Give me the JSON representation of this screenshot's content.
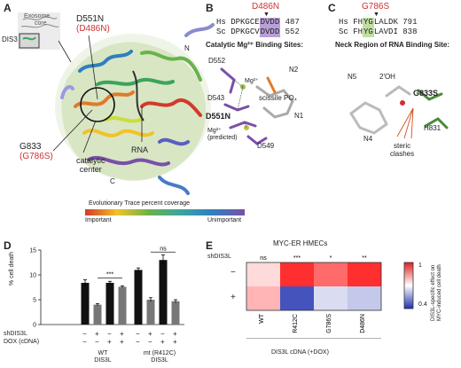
{
  "panel_labels": {
    "a": "A",
    "b": "B",
    "c": "C",
    "d": "D",
    "e": "E"
  },
  "panel_a": {
    "thumb_line1": "Exosome",
    "thumb_line2": "core",
    "thumb_label": "DIS3",
    "mut1_a": "D551N",
    "mut1_b": "(D486N)",
    "mut2_a": "G833",
    "mut2_b": "(G786S)",
    "catalytic": "catalytic",
    "center": "center",
    "rna": "RNA",
    "n_term": "N",
    "c_term": "C",
    "scale_title": "Evolutionary Trace percent coverage",
    "scale_left": "Important",
    "scale_right": "Unimportant"
  },
  "panel_b": {
    "mut_header": "D486N",
    "seq_hs_label": "Hs",
    "seq_hs_pre": "DPKGCE",
    "seq_hs_box": "DVDD",
    "seq_hs_num": "487",
    "seq_sc_label": "Sc",
    "seq_sc_pre": "DPKGCV",
    "seq_sc_box": "DVDD",
    "seq_sc_num": "552",
    "title": "Catalytic Mg²⁺ Binding Sites:",
    "d552": "D552",
    "mg": "Mg²⁺",
    "n2": "N2",
    "d543": "D543",
    "scissile": "scissile PO₄",
    "d551n": "D551N",
    "n1": "N1",
    "mg_pred_a": "Mg²⁺",
    "mg_pred_b": "(predicted)",
    "d549": "D549"
  },
  "panel_c": {
    "mut_header": "G786S",
    "seq_hs_label": "Hs",
    "seq_hs_pre": "FH",
    "seq_hs_box": "YG",
    "seq_hs_post": "LALDK",
    "seq_hs_num": "791",
    "seq_sc_label": "Sc",
    "seq_sc_pre": "FH",
    "seq_sc_box": "YG",
    "seq_sc_post": "LAVDI",
    "seq_sc_num": "838",
    "title": "Neck Region of RNA Binding Site:",
    "n5": "N5",
    "oh": "2′OH",
    "g833s": "G833S",
    "n4": "N4",
    "h831": "H831",
    "steric_a": "steric",
    "steric_b": "clashes"
  },
  "panel_d": {
    "ylabel": "% cell death",
    "shdis3l": "shDIS3L",
    "dox": "DOX (cDNA)",
    "sig1": "***",
    "sig2": "ns",
    "group1_a": "WT",
    "group1_b": "DIS3L",
    "group2_a": "mt (R412C)",
    "group2_b": "DIS3L",
    "shdis3l_signs": [
      "−",
      "+",
      "−",
      "+",
      "−",
      "+",
      "−",
      "+"
    ],
    "dox_signs": [
      "−",
      "−",
      "+",
      "+",
      "−",
      "−",
      "+",
      "+"
    ]
  },
  "panel_e": {
    "title": "MYC-ER HMECs",
    "shdis3l": "shDIS3L",
    "row_minus": "−",
    "row_plus": "+",
    "xlabel": "DIS3L cDNA (+DOX)",
    "cbar_top": "1",
    "cbar_bottom": "0.4",
    "cbar_label": "DIS3L-specific effect on MYC-induced cell death",
    "columns": [
      "WT",
      "R412C",
      "G786S",
      "D486N"
    ],
    "significance": [
      "ns",
      "***",
      "*",
      "**"
    ]
  },
  "chart_data": [
    {
      "type": "bar",
      "ylabel": "% cell death",
      "ylim": [
        0,
        15
      ],
      "yticks": [
        0,
        5,
        10,
        15
      ],
      "categories": [
        "WT -sh -DOX",
        "WT +sh -DOX",
        "WT -sh +DOX",
        "WT +sh +DOX",
        "mt -sh -DOX",
        "mt +sh -DOX",
        "mt -sh +DOX",
        "mt +sh +DOX"
      ],
      "values": [
        8.4,
        4.0,
        8.4,
        7.6,
        11.0,
        5.0,
        13.0,
        4.7
      ],
      "errors": [
        0.6,
        0.2,
        0.3,
        0.2,
        0.4,
        0.4,
        1.0,
        0.3
      ],
      "colors": [
        "#111111",
        "#777777",
        "#111111",
        "#777777",
        "#111111",
        "#777777",
        "#111111",
        "#777777"
      ]
    },
    {
      "type": "heatmap",
      "title": "MYC-ER HMECs",
      "columns": [
        "WT",
        "R412C",
        "G786S",
        "D486N"
      ],
      "rows": [
        "−",
        "+"
      ],
      "values": [
        [
          0.75,
          0.98,
          0.9,
          0.98
        ],
        [
          0.8,
          0.45,
          0.65,
          0.62
        ]
      ],
      "range": [
        0.4,
        1.0
      ]
    }
  ]
}
